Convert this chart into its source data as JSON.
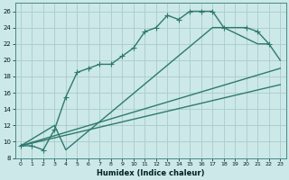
{
  "xlabel": "Humidex (Indice chaleur)",
  "xlim": [
    -0.5,
    23.5
  ],
  "ylim": [
    8,
    27
  ],
  "xticks": [
    0,
    1,
    2,
    3,
    4,
    5,
    6,
    7,
    8,
    9,
    10,
    11,
    12,
    13,
    14,
    15,
    16,
    17,
    18,
    19,
    20,
    21,
    22,
    23
  ],
  "yticks": [
    8,
    10,
    12,
    14,
    16,
    18,
    20,
    22,
    24,
    26
  ],
  "background_color": "#cce8e8",
  "grid_color": "#aacccc",
  "line_color": "#2d7a6e",
  "line1_x": [
    0,
    1,
    2,
    3,
    4,
    5,
    6,
    7,
    8,
    9,
    10,
    11,
    12,
    13,
    14,
    15,
    16,
    17,
    18,
    20,
    21,
    22
  ],
  "line1_y": [
    9.5,
    9.5,
    9.0,
    11.5,
    15.5,
    18.5,
    19.0,
    19.5,
    19.5,
    20.5,
    21.5,
    23.5,
    24.0,
    25.5,
    25.0,
    26.0,
    26.0,
    26.0,
    24.0,
    24.0,
    23.5,
    22.0
  ],
  "line2_x": [
    0,
    3,
    4,
    17,
    18,
    21,
    22,
    23
  ],
  "line2_y": [
    9.5,
    12.0,
    9.0,
    24.0,
    24.0,
    22.0,
    22.0,
    20.0
  ],
  "line3_x": [
    0,
    23
  ],
  "line3_y": [
    9.5,
    19.0
  ],
  "line4_x": [
    0,
    23
  ],
  "line4_y": [
    9.5,
    17.0
  ],
  "marker": "+",
  "markersize": 4,
  "linewidth": 1.0
}
